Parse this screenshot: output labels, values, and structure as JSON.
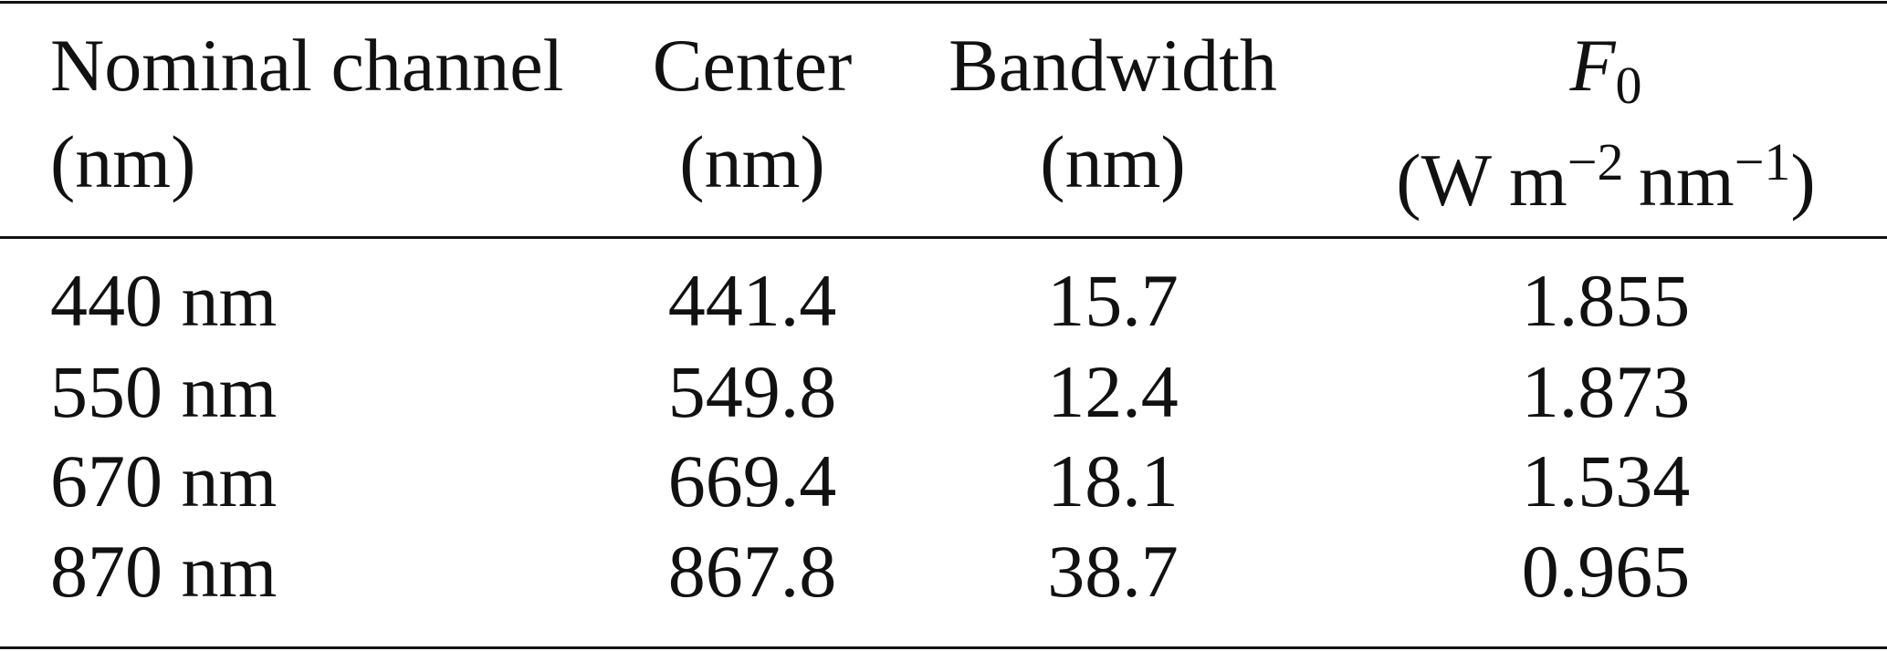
{
  "table": {
    "header": [
      {
        "lines": [
          "Nominal channel",
          "(nm)"
        ]
      },
      {
        "lines": [
          "Center",
          "(nm)"
        ]
      },
      {
        "lines": [
          "Bandwidth",
          "(nm)"
        ]
      },
      {
        "symbol": "F",
        "subscript": "0",
        "unit": [
          "(W m",
          "−2",
          "nm",
          "−1",
          ")"
        ]
      }
    ],
    "rows": [
      [
        "440 nm",
        "441.4",
        "15.7",
        "1.855"
      ],
      [
        "550 nm",
        "549.8",
        "12.4",
        "1.873"
      ],
      [
        "670 nm",
        "669.4",
        "18.1",
        "1.534"
      ],
      [
        "870 nm",
        "867.8",
        "38.7",
        "0.965"
      ]
    ]
  }
}
